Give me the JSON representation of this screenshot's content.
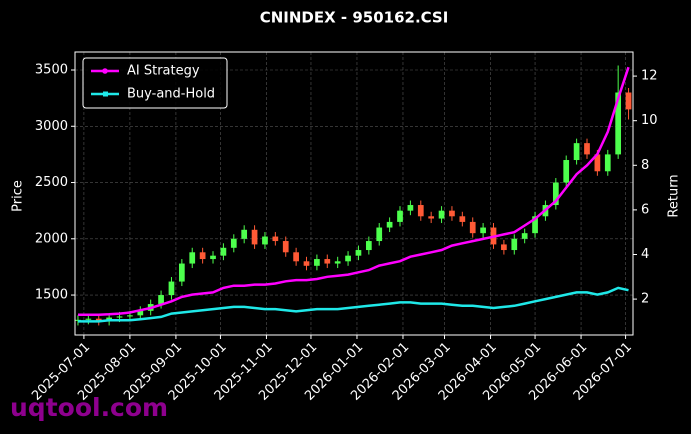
{
  "chart_data": {
    "type": "candlestick",
    "title": "CNINDEX - 950162.CSI",
    "ylabel": "Price",
    "y2label": "Return",
    "watermark": "uqtool.com",
    "grid": true,
    "legend": "upper left",
    "up_color": "#4dff4d",
    "down_color": "#ff5a36",
    "xlim": [
      "2025-06-25",
      "2026-07-06"
    ],
    "xticks": [
      "2025-07-01",
      "2025-08-01",
      "2025-09-01",
      "2025-10-01",
      "2025-11-01",
      "2025-12-01",
      "2026-01-01",
      "2026-02-01",
      "2026-03-01",
      "2026-04-01",
      "2026-05-01",
      "2026-06-01",
      "2026-07-01"
    ],
    "ylim": [
      1145,
      3660
    ],
    "yticks": [
      1500,
      2000,
      2500,
      3000,
      3500
    ],
    "y2lim": [
      0.39,
      13.08
    ],
    "y2ticks": [
      2,
      4,
      6,
      8,
      10,
      12
    ],
    "x": [
      "2025-06-27",
      "2025-07-04",
      "2025-07-11",
      "2025-07-18",
      "2025-07-25",
      "2025-08-01",
      "2025-08-08",
      "2025-08-15",
      "2025-08-22",
      "2025-08-29",
      "2025-09-05",
      "2025-09-12",
      "2025-09-19",
      "2025-09-26",
      "2025-10-03",
      "2025-10-10",
      "2025-10-17",
      "2025-10-24",
      "2025-10-31",
      "2025-11-07",
      "2025-11-14",
      "2025-11-21",
      "2025-11-28",
      "2025-12-05",
      "2025-12-12",
      "2025-12-19",
      "2025-12-26",
      "2026-01-02",
      "2026-01-09",
      "2026-01-16",
      "2026-01-23",
      "2026-01-30",
      "2026-02-06",
      "2026-02-13",
      "2026-02-20",
      "2026-02-27",
      "2026-03-06",
      "2026-03-13",
      "2026-03-20",
      "2026-03-27",
      "2026-04-03",
      "2026-04-10",
      "2026-04-17",
      "2026-04-24",
      "2026-05-01",
      "2026-05-08",
      "2026-05-15",
      "2026-05-22",
      "2026-05-29",
      "2026-06-05",
      "2026-06-12",
      "2026-06-19",
      "2026-06-26",
      "2026-07-03"
    ],
    "open": [
      1270,
      1280,
      1290,
      1270,
      1300,
      1310,
      1320,
      1360,
      1420,
      1500,
      1620,
      1780,
      1880,
      1820,
      1850,
      1920,
      2000,
      2080,
      1950,
      2020,
      1980,
      1880,
      1800,
      1760,
      1820,
      1780,
      1800,
      1850,
      1900,
      1980,
      2100,
      2150,
      2250,
      2300,
      2200,
      2180,
      2250,
      2200,
      2150,
      2050,
      2100,
      1950,
      1900,
      2000,
      2050,
      2200,
      2300,
      2500,
      2700,
      2850,
      2750,
      2600,
      2750,
      3300
    ],
    "high": [
      1320,
      1330,
      1330,
      1340,
      1350,
      1360,
      1400,
      1460,
      1540,
      1660,
      1820,
      1920,
      1920,
      1890,
      1960,
      2040,
      2120,
      2120,
      2060,
      2060,
      2020,
      1920,
      1840,
      1860,
      1860,
      1840,
      1890,
      1940,
      2020,
      2140,
      2190,
      2290,
      2340,
      2340,
      2240,
      2290,
      2290,
      2240,
      2190,
      2140,
      2140,
      1990,
      2040,
      2090,
      2240,
      2340,
      2540,
      2740,
      2890,
      2890,
      2790,
      2790,
      3540,
      3340
    ],
    "low": [
      1230,
      1240,
      1230,
      1230,
      1260,
      1270,
      1280,
      1320,
      1380,
      1460,
      1580,
      1740,
      1780,
      1780,
      1810,
      1880,
      1960,
      1910,
      1910,
      1940,
      1840,
      1760,
      1720,
      1720,
      1740,
      1740,
      1760,
      1810,
      1860,
      1940,
      2060,
      2110,
      2210,
      2160,
      2140,
      2140,
      2160,
      2110,
      2010,
      2010,
      1910,
      1860,
      1860,
      1960,
      2010,
      2160,
      2260,
      2460,
      2660,
      2710,
      2560,
      2560,
      2710,
      3060
    ],
    "close": [
      1280,
      1290,
      1270,
      1300,
      1310,
      1320,
      1360,
      1420,
      1500,
      1620,
      1780,
      1880,
      1820,
      1850,
      1920,
      2000,
      2080,
      1950,
      2020,
      1980,
      1880,
      1800,
      1760,
      1820,
      1780,
      1800,
      1850,
      1900,
      1980,
      2100,
      2150,
      2250,
      2300,
      2200,
      2180,
      2250,
      2200,
      2150,
      2050,
      2100,
      1950,
      1900,
      2000,
      2050,
      2200,
      2300,
      2500,
      2700,
      2850,
      2750,
      2600,
      2750,
      3300,
      3150
    ],
    "series": [
      {
        "name": "AI Strategy",
        "color": "#ff00ff",
        "axis": "y2",
        "marker": "circle",
        "values": [
          1.3,
          1.3,
          1.3,
          1.32,
          1.35,
          1.4,
          1.5,
          1.6,
          1.75,
          1.9,
          2.1,
          2.2,
          2.25,
          2.3,
          2.5,
          2.6,
          2.6,
          2.65,
          2.65,
          2.7,
          2.8,
          2.85,
          2.85,
          2.9,
          3.0,
          3.05,
          3.1,
          3.2,
          3.3,
          3.5,
          3.6,
          3.7,
          3.9,
          4.0,
          4.1,
          4.2,
          4.4,
          4.5,
          4.6,
          4.7,
          4.8,
          4.9,
          5.0,
          5.3,
          5.6,
          6.0,
          6.4,
          7.0,
          7.6,
          8.0,
          8.5,
          9.5,
          11.0,
          12.4
        ]
      },
      {
        "name": "Buy-and-Hold",
        "color": "#1fe8e8",
        "axis": "y2",
        "marker": "square",
        "values": [
          1.0,
          1.0,
          1.0,
          1.05,
          1.05,
          1.05,
          1.1,
          1.15,
          1.2,
          1.35,
          1.4,
          1.45,
          1.5,
          1.55,
          1.6,
          1.65,
          1.65,
          1.6,
          1.55,
          1.55,
          1.5,
          1.45,
          1.5,
          1.55,
          1.55,
          1.55,
          1.6,
          1.65,
          1.7,
          1.75,
          1.8,
          1.85,
          1.85,
          1.8,
          1.8,
          1.8,
          1.75,
          1.7,
          1.7,
          1.65,
          1.6,
          1.65,
          1.7,
          1.8,
          1.9,
          2.0,
          2.1,
          2.2,
          2.3,
          2.3,
          2.2,
          2.3,
          2.5,
          2.4
        ]
      }
    ]
  }
}
